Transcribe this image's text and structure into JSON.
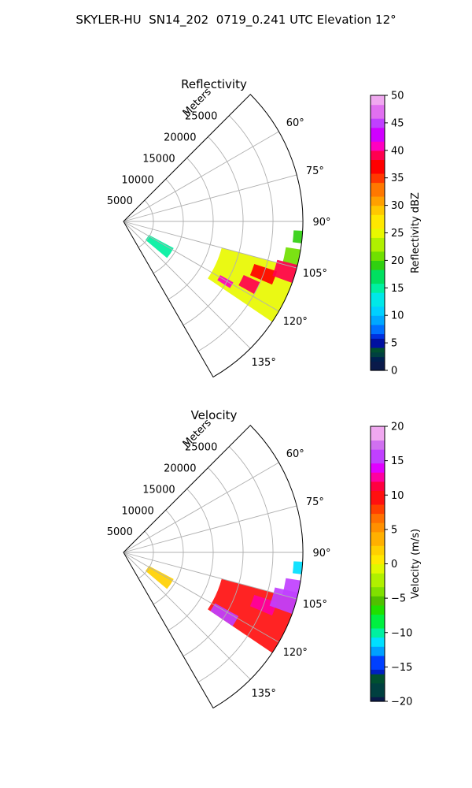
{
  "figure": {
    "title": "SKYLER-HU  SN14_202  0719_0.241 UTC Elevation 12°"
  },
  "chart_data": [
    {
      "type": "heatmap",
      "projection": "polar-sector",
      "title": "Reflectivity",
      "radial_axis_label": "Meters",
      "radial_ticks": [
        5000,
        10000,
        15000,
        20000,
        25000
      ],
      "radial_tick_labels": [
        "5000",
        "10000",
        "15000",
        "20000",
        "25000"
      ],
      "r_range": [
        0,
        30000
      ],
      "azimuth_range_deg": [
        45,
        150
      ],
      "azimuth_ticks_deg": [
        60,
        75,
        90,
        105,
        120,
        135
      ],
      "azimuth_tick_labels": [
        "60°",
        "75°",
        "90°",
        "105°",
        "120°",
        "135°"
      ],
      "grid": true,
      "colorbar": {
        "label": "Reflectivity dBZ",
        "min": 0,
        "max": 50,
        "ticks": [
          0,
          5,
          10,
          15,
          20,
          25,
          30,
          35,
          40,
          45,
          50
        ],
        "tick_labels": [
          "0",
          "5",
          "10",
          "15",
          "20",
          "25",
          "30",
          "35",
          "40",
          "45",
          "50"
        ]
      },
      "echo_regions": [
        {
          "az_deg": [
            118,
            130
          ],
          "r_m": [
            4800,
            9500
          ],
          "value": 15
        },
        {
          "az_deg": [
            99,
            106
          ],
          "r_m": [
            27500,
            30000
          ],
          "value": 20
        },
        {
          "az_deg": [
            93,
            97
          ],
          "r_m": [
            28500,
            30000
          ],
          "value": 18
        },
        {
          "az_deg": [
            105,
            124
          ],
          "r_m": [
            17000,
            30000
          ],
          "value": 25
        },
        {
          "az_deg": [
            108,
            113
          ],
          "r_m": [
            23000,
            27000
          ],
          "value": 36
        },
        {
          "az_deg": [
            114,
            119
          ],
          "r_m": [
            22000,
            25000
          ],
          "value": 38
        },
        {
          "az_deg": [
            104,
            110
          ],
          "r_m": [
            26500,
            30000
          ],
          "value": 38
        },
        {
          "az_deg": [
            119,
            122
          ],
          "r_m": [
            18500,
            21000
          ],
          "value": 40
        }
      ]
    },
    {
      "type": "heatmap",
      "projection": "polar-sector",
      "title": "Velocity",
      "radial_axis_label": "Meters",
      "radial_ticks": [
        5000,
        10000,
        15000,
        20000,
        25000
      ],
      "radial_tick_labels": [
        "5000",
        "10000",
        "15000",
        "20000",
        "25000"
      ],
      "r_range": [
        0,
        30000
      ],
      "azimuth_range_deg": [
        45,
        150
      ],
      "azimuth_ticks_deg": [
        60,
        75,
        90,
        105,
        120,
        135
      ],
      "azimuth_tick_labels": [
        "60°",
        "75°",
        "90°",
        "105°",
        "120°",
        "135°"
      ],
      "grid": true,
      "colorbar": {
        "label": "Velocity (m/s)",
        "min": -20,
        "max": 20,
        "ticks": [
          -20,
          -15,
          -10,
          -5,
          0,
          5,
          10,
          15,
          20
        ],
        "tick_labels": [
          "−20",
          "−15",
          "−10",
          "−5",
          "0",
          "5",
          "10",
          "15",
          "20"
        ]
      },
      "echo_regions": [
        {
          "az_deg": [
            118,
            130
          ],
          "r_m": [
            4800,
            9500
          ],
          "value": 2
        },
        {
          "az_deg": [
            93,
            97
          ],
          "r_m": [
            28500,
            30000
          ],
          "value": -12
        },
        {
          "az_deg": [
            99,
            106
          ],
          "r_m": [
            27500,
            30000
          ],
          "value": 16
        },
        {
          "az_deg": [
            105,
            124
          ],
          "r_m": [
            17000,
            30000
          ],
          "value": 10
        },
        {
          "az_deg": [
            108,
            113
          ],
          "r_m": [
            23000,
            27000
          ],
          "value": 12
        },
        {
          "az_deg": [
            119,
            124
          ],
          "r_m": [
            17500,
            22000
          ],
          "value": 15
        },
        {
          "az_deg": [
            103,
            110
          ],
          "r_m": [
            26000,
            30000
          ],
          "value": 15
        }
      ]
    }
  ]
}
